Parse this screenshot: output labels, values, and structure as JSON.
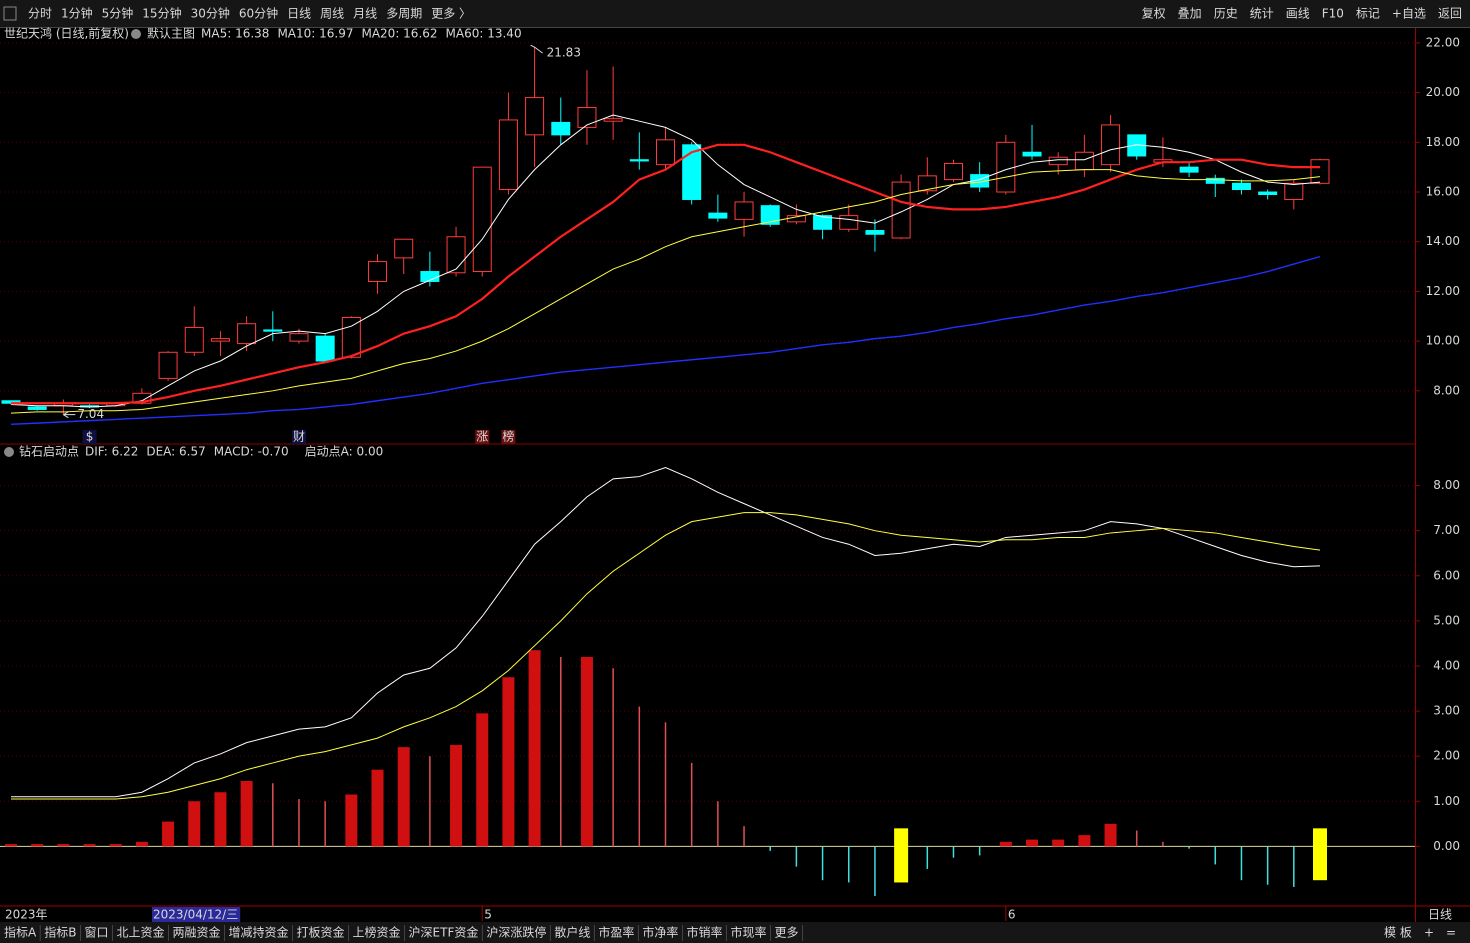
{
  "toolbar": {
    "period_tabs": [
      "分时",
      "1分钟",
      "5分钟",
      "15分钟",
      "30分钟",
      "60分钟",
      "日线",
      "周线",
      "月线",
      "多周期",
      "更多 〉"
    ],
    "active_period": 6,
    "tools": [
      "复权",
      "叠加",
      "历史",
      "统计",
      "画线",
      "F10",
      "标记",
      "+自选",
      "返回"
    ]
  },
  "bottom_tabs": {
    "items": [
      "指标A",
      "指标B",
      "窗口",
      "北上资金",
      "两融资金",
      "增减持资金",
      "打板资金",
      "上榜资金",
      "沪深ETF资金",
      "沪深涨跌停",
      "散户线",
      "市盈率",
      "市净率",
      "市销率",
      "市现率",
      "更多"
    ],
    "active": 15,
    "right": [
      "模 板",
      "+",
      "="
    ]
  },
  "cursor_date": "2023/04/12/三",
  "period_label": "日线",
  "markers": [
    {
      "label": "$",
      "index": 3,
      "color": "#ff3030"
    },
    {
      "label": "财",
      "index": 11,
      "color": "#4aa0ff"
    },
    {
      "label": "涨",
      "index": 18,
      "color": "#ffffff"
    },
    {
      "label": "榜",
      "index": 19,
      "color": "#ffd080"
    }
  ],
  "chart_data": [
    {
      "type": "candlestick",
      "title": "世纪天鸿 (日线,前复权)",
      "subtitle": "默认主图",
      "ylim": [
        5.9,
        22.6
      ],
      "yticks": [
        {
          "value": 8,
          "label": "8.00"
        },
        {
          "value": 10,
          "label": "10.00"
        },
        {
          "value": 12,
          "label": "12.00"
        },
        {
          "value": 14,
          "label": "14.00"
        },
        {
          "value": 16,
          "label": "16.00"
        },
        {
          "value": 18,
          "label": "18.00"
        },
        {
          "value": 20,
          "label": "20.00"
        },
        {
          "value": 22,
          "label": "22.00"
        }
      ],
      "grid": true,
      "up_color": "#ff3c3c",
      "down_color": "#00ffff",
      "open": [
        7.6,
        7.35,
        7.4,
        7.4,
        7.4,
        7.5,
        8.5,
        9.55,
        10.0,
        9.9,
        10.45,
        10.0,
        10.2,
        9.35,
        12.4,
        13.35,
        12.8,
        12.75,
        12.8,
        16.1,
        18.3,
        18.8,
        18.6,
        18.85,
        17.3,
        17.1,
        17.9,
        15.15,
        14.9,
        15.45,
        14.8,
        15.05,
        14.5,
        14.45,
        14.15,
        16.05,
        16.5,
        16.7,
        16.0,
        17.6,
        17.1,
        16.9,
        17.1,
        18.3,
        17.2,
        17.0,
        16.55,
        16.35,
        16.0,
        15.7,
        16.35
      ],
      "high": [
        7.6,
        7.4,
        7.65,
        7.45,
        7.55,
        8.1,
        9.6,
        11.4,
        10.4,
        11.0,
        11.2,
        10.5,
        10.3,
        11.0,
        13.5,
        14.1,
        13.6,
        14.6,
        17.0,
        20.0,
        21.83,
        19.8,
        20.9,
        21.05,
        18.4,
        18.6,
        18.0,
        15.9,
        16.0,
        15.5,
        15.5,
        15.1,
        15.5,
        14.9,
        16.7,
        17.4,
        17.3,
        17.2,
        18.3,
        18.7,
        17.6,
        18.3,
        19.1,
        18.3,
        18.2,
        17.2,
        16.7,
        16.5,
        16.1,
        16.5,
        17.35
      ],
      "low": [
        7.45,
        7.2,
        7.04,
        7.3,
        7.35,
        7.45,
        8.4,
        9.4,
        9.4,
        9.6,
        10.0,
        9.9,
        9.2,
        9.3,
        11.9,
        12.7,
        12.2,
        12.6,
        12.6,
        15.9,
        17.0,
        17.9,
        17.9,
        18.1,
        16.9,
        16.9,
        15.5,
        14.8,
        14.2,
        14.6,
        14.7,
        14.1,
        14.4,
        13.6,
        14.1,
        15.9,
        16.4,
        16.0,
        15.9,
        17.3,
        16.7,
        16.6,
        16.8,
        17.3,
        17.0,
        16.6,
        15.8,
        15.9,
        15.7,
        15.3,
        16.3
      ],
      "close": [
        7.5,
        7.25,
        7.5,
        7.35,
        7.5,
        7.9,
        9.55,
        10.55,
        10.1,
        10.7,
        10.4,
        10.3,
        9.2,
        10.95,
        13.2,
        14.1,
        12.4,
        14.2,
        17.0,
        18.9,
        19.8,
        18.3,
        19.4,
        18.95,
        17.25,
        18.1,
        15.7,
        14.95,
        15.6,
        14.7,
        15.05,
        14.5,
        15.05,
        14.3,
        16.4,
        16.65,
        17.15,
        16.2,
        18.0,
        17.45,
        17.4,
        17.6,
        18.7,
        17.45,
        17.3,
        16.8,
        16.35,
        16.1,
        15.9,
        16.35,
        17.3
      ],
      "series": [
        {
          "name": "MA5: 16.38",
          "color": "#ffffff",
          "width": 1,
          "values": [
            7.45,
            7.4,
            7.4,
            7.35,
            7.4,
            7.6,
            8.2,
            8.8,
            9.2,
            9.8,
            10.3,
            10.4,
            10.3,
            10.6,
            11.2,
            12.0,
            12.45,
            12.9,
            14.1,
            15.7,
            16.9,
            17.9,
            18.7,
            19.1,
            18.85,
            18.6,
            18.1,
            17.1,
            16.3,
            15.8,
            15.3,
            15.0,
            14.9,
            14.75,
            15.2,
            15.7,
            16.3,
            16.5,
            16.9,
            17.2,
            17.3,
            17.3,
            17.7,
            17.9,
            17.8,
            17.6,
            17.3,
            16.8,
            16.4,
            16.3,
            16.4
          ]
        },
        {
          "name": "MA10: 16.97",
          "color": "#ff2020",
          "width": 2.2,
          "values": [
            7.5,
            7.5,
            7.5,
            7.5,
            7.5,
            7.55,
            7.75,
            8.0,
            8.2,
            8.45,
            8.7,
            8.95,
            9.15,
            9.4,
            9.8,
            10.3,
            10.6,
            11.0,
            11.7,
            12.6,
            13.4,
            14.2,
            14.9,
            15.6,
            16.5,
            16.9,
            17.6,
            17.9,
            17.9,
            17.6,
            17.2,
            16.8,
            16.4,
            16.0,
            15.6,
            15.4,
            15.3,
            15.3,
            15.4,
            15.6,
            15.8,
            16.1,
            16.5,
            16.9,
            17.2,
            17.2,
            17.3,
            17.3,
            17.1,
            17.0,
            17.0
          ]
        },
        {
          "name": "MA20: 16.62",
          "color": "#ffff40",
          "width": 1,
          "values": [
            7.1,
            7.15,
            7.15,
            7.2,
            7.2,
            7.25,
            7.4,
            7.55,
            7.7,
            7.85,
            8.0,
            8.2,
            8.35,
            8.5,
            8.8,
            9.1,
            9.3,
            9.6,
            10.0,
            10.5,
            11.1,
            11.7,
            12.3,
            12.9,
            13.3,
            13.8,
            14.2,
            14.4,
            14.6,
            14.8,
            15.0,
            15.2,
            15.4,
            15.6,
            15.9,
            16.1,
            16.3,
            16.4,
            16.6,
            16.8,
            16.85,
            16.9,
            16.9,
            16.65,
            16.55,
            16.5,
            16.5,
            16.45,
            16.45,
            16.5,
            16.62
          ]
        },
        {
          "name": "MA60: 13.40",
          "color": "#2030ff",
          "width": 1.4,
          "values": [
            6.65,
            6.7,
            6.75,
            6.8,
            6.85,
            6.9,
            6.95,
            7.0,
            7.05,
            7.1,
            7.2,
            7.25,
            7.35,
            7.45,
            7.6,
            7.75,
            7.9,
            8.1,
            8.3,
            8.45,
            8.6,
            8.75,
            8.85,
            8.95,
            9.05,
            9.15,
            9.25,
            9.35,
            9.45,
            9.55,
            9.7,
            9.85,
            9.95,
            10.1,
            10.2,
            10.35,
            10.55,
            10.7,
            10.9,
            11.05,
            11.25,
            11.45,
            11.6,
            11.8,
            11.95,
            12.15,
            12.35,
            12.55,
            12.8,
            13.1,
            13.4
          ]
        }
      ],
      "annotations": [
        {
          "index": 20,
          "value": 21.83,
          "label": "21.83"
        },
        {
          "index": 2,
          "value": 7.04,
          "label": "7.04"
        }
      ]
    },
    {
      "type": "macd",
      "title": "钻石启动点",
      "categories": [
        "2023年",
        null,
        null,
        null,
        null,
        null,
        null,
        null,
        null,
        null,
        null,
        null,
        null,
        null,
        null,
        null,
        null,
        null,
        "5",
        null,
        null,
        null,
        null,
        null,
        null,
        null,
        null,
        null,
        null,
        null,
        null,
        null,
        null,
        null,
        null,
        null,
        null,
        null,
        "6",
        null,
        null,
        null,
        null,
        null,
        null,
        null,
        null,
        null,
        null,
        null,
        null
      ],
      "ylim": [
        -1.3,
        8.9
      ],
      "yticks": [
        {
          "value": 0,
          "label": "0.00"
        },
        {
          "value": 1,
          "label": "1.00"
        },
        {
          "value": 2,
          "label": "2.00"
        },
        {
          "value": 3,
          "label": "3.00"
        },
        {
          "value": 4,
          "label": "4.00"
        },
        {
          "value": 5,
          "label": "5.00"
        },
        {
          "value": 6,
          "label": "6.00"
        },
        {
          "value": 7,
          "label": "7.00"
        },
        {
          "value": 8,
          "label": "8.00"
        }
      ],
      "grid": true,
      "series": [
        {
          "name": "DIF: 6.22",
          "color": "#ffffff",
          "values": [
            1.1,
            1.1,
            1.1,
            1.1,
            1.1,
            1.2,
            1.5,
            1.85,
            2.05,
            2.3,
            2.45,
            2.6,
            2.65,
            2.85,
            3.4,
            3.8,
            3.95,
            4.4,
            5.1,
            5.9,
            6.7,
            7.2,
            7.75,
            8.15,
            8.2,
            8.4,
            8.15,
            7.85,
            7.6,
            7.35,
            7.1,
            6.85,
            6.7,
            6.45,
            6.5,
            6.6,
            6.7,
            6.65,
            6.85,
            6.9,
            6.95,
            7.0,
            7.2,
            7.15,
            7.05,
            6.85,
            6.65,
            6.45,
            6.3,
            6.2,
            6.22
          ]
        },
        {
          "name": "DEA: 6.57",
          "color": "#ffff40",
          "values": [
            1.05,
            1.05,
            1.05,
            1.05,
            1.05,
            1.1,
            1.2,
            1.35,
            1.5,
            1.7,
            1.85,
            2.0,
            2.1,
            2.25,
            2.4,
            2.65,
            2.85,
            3.1,
            3.45,
            3.9,
            4.45,
            5.0,
            5.6,
            6.1,
            6.5,
            6.9,
            7.2,
            7.3,
            7.4,
            7.4,
            7.35,
            7.25,
            7.15,
            7.0,
            6.9,
            6.85,
            6.8,
            6.75,
            6.8,
            6.8,
            6.85,
            6.85,
            6.95,
            7.0,
            7.05,
            7.0,
            6.95,
            6.85,
            6.75,
            6.65,
            6.57
          ]
        }
      ],
      "bars": {
        "name": "MACD: -0.70",
        "color": "#d01010",
        "name_color": "#ff40ff",
        "neg_color": "#40e0e0",
        "values": [
          0.05,
          0.05,
          0.05,
          0.05,
          0.05,
          0.1,
          0.55,
          1.0,
          1.2,
          1.45,
          1.4,
          1.05,
          1.0,
          1.15,
          1.7,
          2.2,
          2.0,
          2.25,
          2.95,
          3.75,
          4.35,
          4.2,
          4.2,
          3.95,
          3.1,
          2.75,
          1.85,
          1.0,
          0.45,
          -0.1,
          -0.45,
          -0.75,
          -0.8,
          -1.1,
          -0.35,
          -0.5,
          -0.25,
          -0.2,
          0.1,
          0.15,
          0.15,
          0.25,
          0.5,
          0.35,
          0.1,
          -0.05,
          -0.4,
          -0.75,
          -0.85,
          -0.9,
          -0.7
        ]
      },
      "signal": {
        "name": "启动点A: 0.00",
        "color": "#ffff00",
        "name_color": "#ffd040",
        "index": [
          34,
          50
        ],
        "top": [
          0.4,
          0.4
        ],
        "bottom": [
          -0.8,
          -0.75
        ]
      }
    }
  ]
}
